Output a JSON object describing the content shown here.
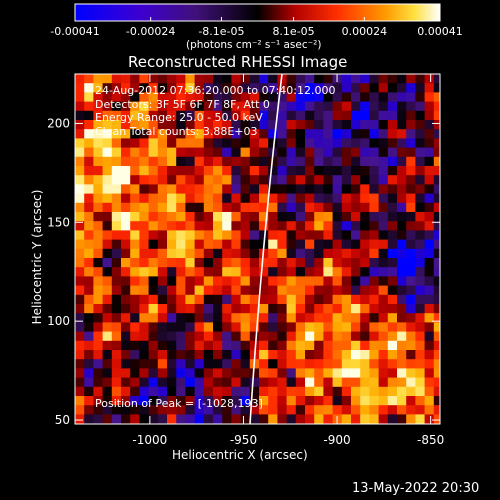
{
  "colorbar": {
    "ticks": [
      "-0.00041",
      "-0.00024",
      "-8.1e-05",
      "8.1e-05",
      "0.00024",
      "0.00041"
    ],
    "tick_values": [
      -0.00041,
      -0.00024,
      -8.1e-05,
      8.1e-05,
      0.00024,
      0.00041
    ],
    "min": -0.00041,
    "max": 0.00041,
    "units_label": "(photons cm⁻² s⁻¹ asec⁻²)",
    "colors": [
      "#0000ff",
      "#4a00c0",
      "#3a1060",
      "#000000",
      "#c00000",
      "#ff5000",
      "#ffc000",
      "#ffffff"
    ]
  },
  "title": "Reconstructed RHESSI Image",
  "info": {
    "line1": "24-Aug-2012 07:36:20.000 to 07:40:12.000",
    "line2": "Detectors: 3F 5F 6F 7F 8F, Att 0",
    "line3": "Energy Range: 25.0 - 50.0 keV",
    "line4": "Clean    Total counts: 3.88E+03"
  },
  "peak_label": "Position of Peak = [-1028,193]",
  "axes": {
    "xlabel": "Heliocentric X (arcsec)",
    "ylabel": "Heliocentric Y (arcsec)",
    "xrange": [
      -1040,
      -845
    ],
    "yrange": [
      48,
      225
    ],
    "xticks": [
      -1000,
      -950,
      -900,
      -850
    ],
    "xtick_labels": [
      "-1000",
      "-950",
      "-900",
      "-850"
    ],
    "yticks": [
      50,
      100,
      150,
      200
    ],
    "ytick_labels": [
      "50",
      "100",
      "150",
      "200"
    ]
  },
  "timestamp": "13-May-2022 20:30"
}
